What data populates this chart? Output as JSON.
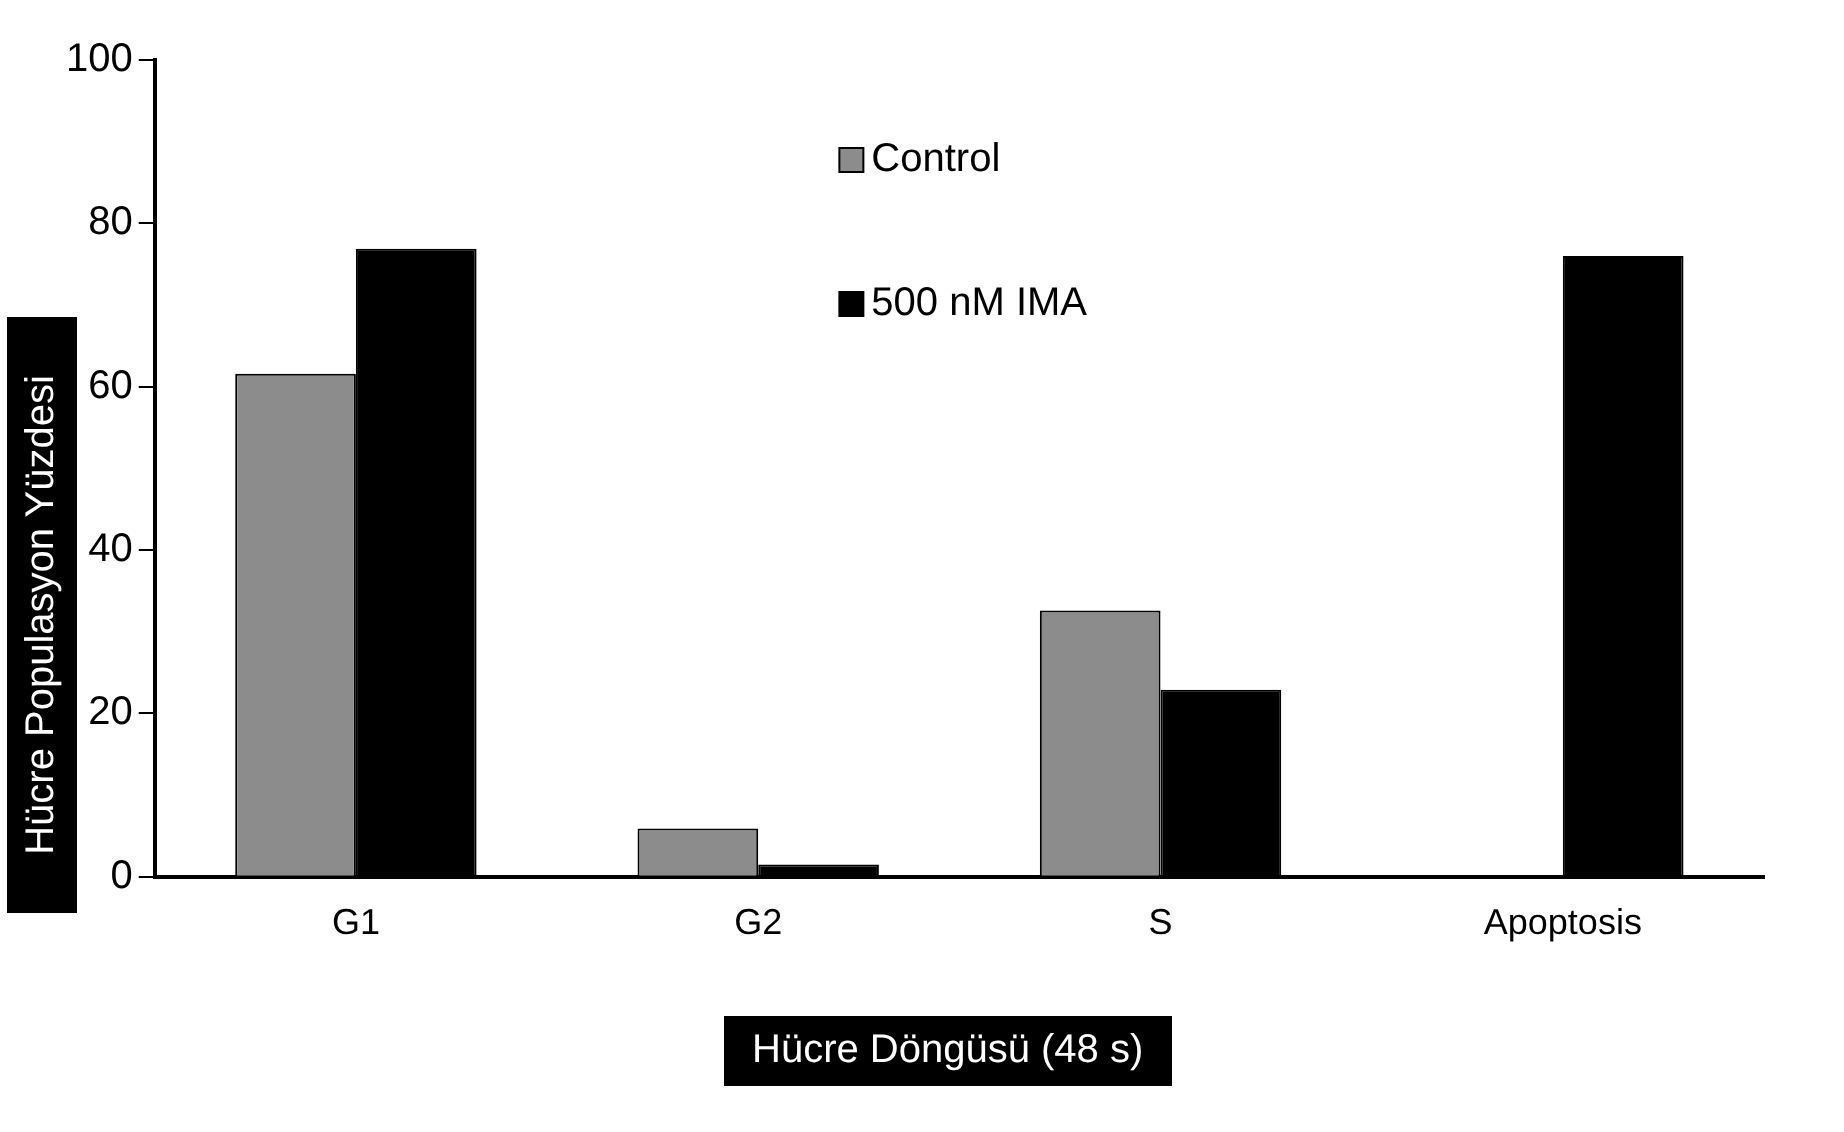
{
  "chart_data": {
    "type": "bar",
    "xlabel": "Hücre Döngüsü (48 s)",
    "ylabel": "Hücre Populasyon Yüzdesi",
    "categories": [
      "G1",
      "G2",
      "S",
      "Apoptosis"
    ],
    "series": [
      {
        "name": "Control",
        "color": "#8c8c8c",
        "values": [
          61.6,
          5.9,
          32.6,
          null
        ]
      },
      {
        "name": "500 nM IMA",
        "color": "#000000",
        "values": [
          76.9,
          1.5,
          22.9,
          76.0
        ]
      }
    ],
    "ylim": [
      0,
      100
    ],
    "yticks": [
      0,
      20,
      40,
      60,
      80,
      100
    ],
    "grid": false,
    "legend": "top"
  }
}
